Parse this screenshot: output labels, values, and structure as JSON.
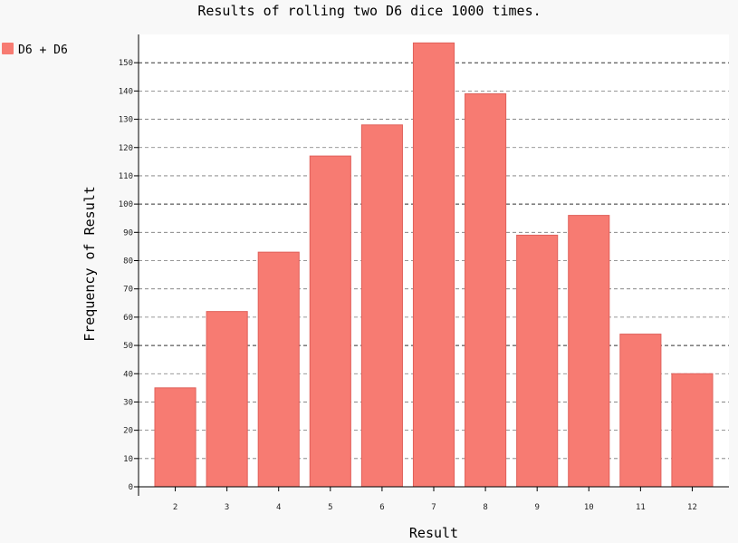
{
  "chart_data": {
    "type": "bar",
    "title": "Results of rolling two D6 dice 1000 times.",
    "xlabel": "Result",
    "ylabel": "Frequency of Result",
    "categories": [
      "2",
      "3",
      "4",
      "5",
      "6",
      "7",
      "8",
      "9",
      "10",
      "11",
      "12"
    ],
    "series": [
      {
        "name": "D6 + D6",
        "values": [
          35,
          62,
          83,
          117,
          128,
          157,
          139,
          89,
          96,
          54,
          40
        ]
      }
    ],
    "ylim": [
      0,
      160
    ],
    "yticks": [
      0,
      10,
      20,
      30,
      40,
      50,
      60,
      70,
      80,
      90,
      100,
      110,
      120,
      130,
      140,
      150
    ],
    "major_yticks": [
      50,
      100,
      150
    ],
    "grid": true,
    "legend_position": "top-left",
    "colors": {
      "bar": "#f77b72",
      "bar_stroke": "#e0605a",
      "plot_bg": "#ffffff",
      "page_bg": "#f8f8f8"
    }
  }
}
